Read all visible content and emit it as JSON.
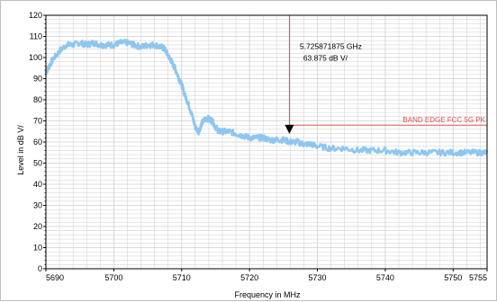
{
  "chart_data": {
    "type": "line",
    "title": "",
    "xlabel": "Frequency in MHz",
    "ylabel": "Level in dB   V/",
    "xlim": [
      5690,
      5755
    ],
    "ylim": [
      0,
      120
    ],
    "x_ticks": [
      5690,
      5700,
      5710,
      5720,
      5730,
      5740,
      5750,
      5755
    ],
    "y_ticks": [
      0,
      10,
      20,
      30,
      40,
      50,
      60,
      70,
      80,
      90,
      100,
      110,
      120
    ],
    "grid": true,
    "colors": {
      "trace": "#8ec6f0",
      "limit": "#e05050",
      "marker": "#e05050",
      "grid": "#cfcfcf"
    },
    "series": [
      {
        "x": [
          5690,
          5690.5,
          5691,
          5692,
          5693,
          5694,
          5695,
          5696,
          5697,
          5698,
          5699,
          5700,
          5701,
          5702,
          5703,
          5704,
          5705,
          5706,
          5707,
          5707.5,
          5708,
          5708.5,
          5709,
          5709.5,
          5710,
          5710.5,
          5711,
          5711.5,
          5712,
          5712.5,
          5713,
          5713.5,
          5714,
          5714.5,
          5715,
          5715.5,
          5716,
          5717,
          5718,
          5719,
          5720,
          5721,
          5722,
          5723,
          5724,
          5725,
          5726,
          5727,
          5728,
          5729,
          5730,
          5732,
          5734,
          5736,
          5738,
          5740,
          5742,
          5744,
          5746,
          5748,
          5750,
          5752,
          5754,
          5755
        ],
        "values": [
          93,
          96,
          99,
          103,
          106,
          106,
          107,
          106,
          107,
          106,
          106,
          106,
          107,
          107,
          106,
          105,
          106,
          106,
          105,
          104,
          101,
          98,
          95,
          91,
          87,
          82,
          78,
          73,
          67,
          65,
          69,
          71,
          71,
          70,
          67,
          65,
          65,
          65,
          64,
          63,
          62,
          62,
          62,
          61,
          61,
          61,
          60,
          60,
          59,
          59,
          58,
          57,
          57,
          56,
          56,
          56,
          55,
          55,
          55,
          55,
          55,
          55,
          55,
          55
        ]
      }
    ],
    "limit_line": {
      "name": "BAND EDGE  FCC 5G PK",
      "value": 68
    },
    "marker": {
      "x": 5725.871875,
      "y": 63.875,
      "freq_label": "5.725871875 GHz",
      "level_label": "63.875 dB   V/"
    }
  }
}
